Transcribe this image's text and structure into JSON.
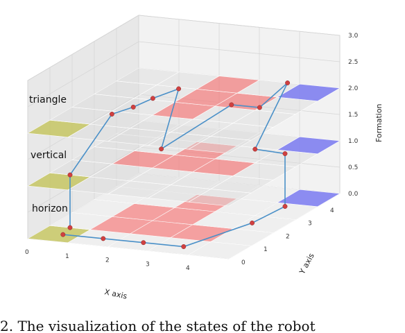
{
  "caption": "2. The visualization of the states of the robot",
  "chart_data": {
    "type": "3d-grid-path",
    "xlabel": "X axis",
    "ylabel": "Y axis",
    "zlabel": "Formation",
    "x_ticks": [
      "0",
      "1",
      "2",
      "3",
      "4"
    ],
    "y_ticks": [
      "0",
      "1",
      "2",
      "3",
      "4"
    ],
    "z_ticks": [
      "0.0",
      "0.5",
      "1.0",
      "1.5",
      "2.0",
      "2.5",
      "3.0"
    ],
    "layers": [
      {
        "name": "horizon",
        "z": 0
      },
      {
        "name": "vertical",
        "z": 1
      },
      {
        "name": "triangle",
        "z": 2
      }
    ],
    "colors": {
      "start": "#c8c86a",
      "obstacle": "#f08080",
      "goal": "#8080f0",
      "empty": "#dcdcdc",
      "path": "#4a90c8",
      "point": "#d04040"
    },
    "cells": {
      "start": [
        {
          "x": 0,
          "y": 0
        }
      ],
      "goal": [
        {
          "x": 4,
          "y": 4
        }
      ],
      "obstacles": {
        "0": [
          {
            "x": 1,
            "y": 1
          },
          {
            "x": 2,
            "y": 1
          },
          {
            "x": 3,
            "y": 1
          },
          {
            "x": 1,
            "y": 2
          },
          {
            "x": 2,
            "y": 2
          },
          {
            "x": 2,
            "y": 3
          }
        ],
        "1": [
          {
            "x": 1,
            "y": 2
          },
          {
            "x": 2,
            "y": 2
          },
          {
            "x": 2,
            "y": 3
          },
          {
            "x": 3,
            "y": 2
          }
        ],
        "2": [
          {
            "x": 2,
            "y": 2
          },
          {
            "x": 2,
            "y": 3
          },
          {
            "x": 2,
            "y": 4
          },
          {
            "x": 3,
            "y": 3
          }
        ]
      }
    },
    "path": [
      {
        "x": 0.1,
        "y": 0.0,
        "z": 0
      },
      {
        "x": 1.1,
        "y": 0.0,
        "z": 0
      },
      {
        "x": 2.1,
        "y": 0.0,
        "z": 0
      },
      {
        "x": 3.1,
        "y": 0.0,
        "z": 0
      },
      {
        "x": 3.7,
        "y": 2.0,
        "z": 0
      },
      {
        "x": 3.8,
        "y": 3.3,
        "z": 0
      },
      {
        "x": 3.8,
        "y": 3.3,
        "z": 1
      },
      {
        "x": 3.0,
        "y": 3.4,
        "z": 1
      },
      {
        "x": 3.2,
        "y": 4.5,
        "z": 2
      },
      {
        "x": 3.5,
        "y": 2.7,
        "z": 2
      },
      {
        "x": 2.8,
        "y": 2.7,
        "z": 2
      },
      {
        "x": 1.0,
        "y": 2.8,
        "z": 1
      },
      {
        "x": 1.1,
        "y": 3.4,
        "z": 2
      },
      {
        "x": 0.9,
        "y": 2.6,
        "z": 2
      },
      {
        "x": 0.8,
        "y": 1.9,
        "z": 2
      },
      {
        "x": 0.6,
        "y": 1.3,
        "z": 2
      },
      {
        "x": 0.0,
        "y": 0.5,
        "z": 1
      },
      {
        "x": 0.0,
        "y": 0.5,
        "z": 0
      }
    ]
  }
}
